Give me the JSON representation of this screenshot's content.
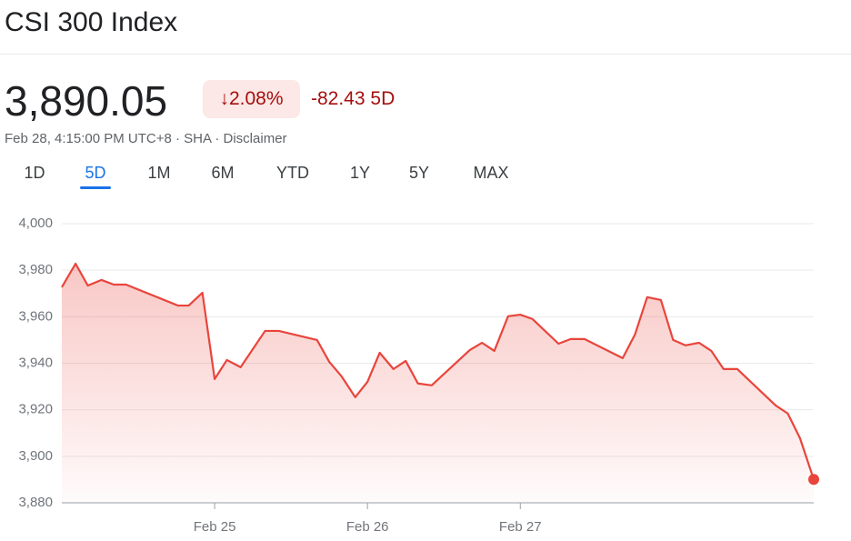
{
  "header": {
    "title": "CSI 300 Index",
    "price": "3,890.05",
    "change_percent": "↓2.08%",
    "change": "-82.43",
    "period": "5D",
    "meta": "Feb 28, 4:15:00 PM UTC+8 · SHA · Disclaimer"
  },
  "tabs": {
    "items": [
      "1D",
      "5D",
      "1M",
      "6M",
      "YTD",
      "1Y",
      "5Y",
      "MAX"
    ],
    "selected": 1
  },
  "chart_data": {
    "type": "area",
    "color": "#e8453c",
    "grid": true,
    "x": [
      0,
      0.09,
      0.17,
      0.26,
      0.34,
      0.42,
      0.76,
      0.83,
      0.92,
      1.0,
      1.08,
      1.17,
      1.33,
      1.42,
      1.67,
      1.75,
      1.83,
      1.92,
      2.0,
      2.08,
      2.17,
      2.25,
      2.33,
      2.42,
      2.67,
      2.75,
      2.83,
      2.92,
      3.0,
      3.08,
      3.25,
      3.33,
      3.42,
      3.67,
      3.75,
      3.83,
      3.92,
      4.0,
      4.08,
      4.17,
      4.25,
      4.33,
      4.42,
      4.67,
      4.75,
      4.83,
      4.92
    ],
    "values": [
      3972.7,
      3982.8,
      3973.4,
      3975.8,
      3973.8,
      3973.8,
      3964.8,
      3964.8,
      3970.3,
      3933.2,
      3941.4,
      3938.3,
      3953.9,
      3953.9,
      3950.0,
      3940.6,
      3934.4,
      3925.4,
      3932.0,
      3944.5,
      3937.5,
      3941.0,
      3931.3,
      3930.5,
      3945.7,
      3948.8,
      3945.3,
      3960.2,
      3960.9,
      3959.0,
      3948.4,
      3950.4,
      3950.4,
      3942.2,
      3952.3,
      3968.4,
      3967.2,
      3950.0,
      3947.7,
      3948.8,
      3945.3,
      3937.5,
      3937.5,
      3921.9,
      3918.4,
      3907.8,
      3890.05
    ],
    "xlim": [
      0,
      4.92
    ],
    "xticks": [
      {
        "value": 1,
        "label": "Feb 25"
      },
      {
        "value": 2,
        "label": "Feb 26"
      },
      {
        "value": 3,
        "label": "Feb 27"
      }
    ],
    "ylim": [
      3880,
      4000
    ],
    "yticks": [
      {
        "value": 3880,
        "label": "3,880"
      },
      {
        "value": 3900,
        "label": "3,900"
      },
      {
        "value": 3920,
        "label": "3,920"
      },
      {
        "value": 3940,
        "label": "3,940"
      },
      {
        "value": 3960,
        "label": "3,960"
      },
      {
        "value": 3980,
        "label": "3,980"
      },
      {
        "value": 4000,
        "label": "4,000"
      }
    ]
  }
}
